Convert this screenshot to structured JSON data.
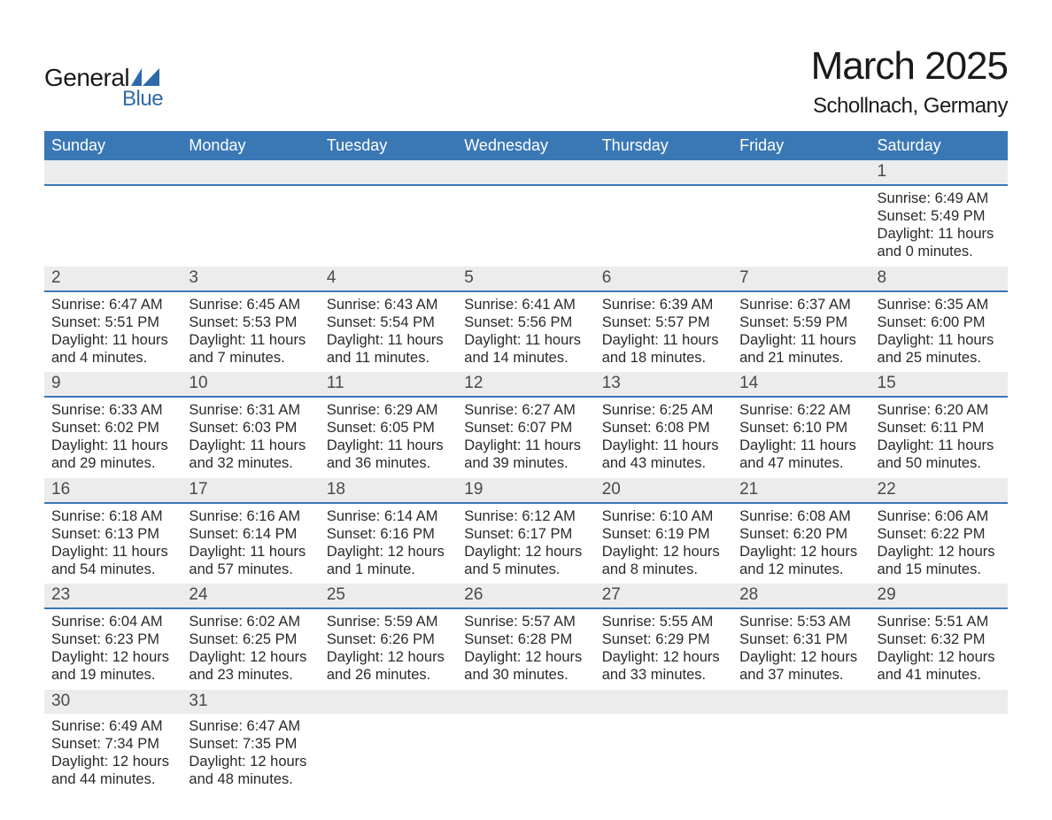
{
  "logo": {
    "main": "General",
    "sub": "Blue",
    "accent_color": "#2f6aa8",
    "text_color": "#1a1a1a"
  },
  "title": "March 2025",
  "subtitle": "Schollnach, Germany",
  "colors": {
    "header_bg": "#3a78b5",
    "header_text": "#ffffff",
    "daynum_bg": "#ececec",
    "daynum_border": "#3a78b5",
    "body_text": "#2a2a2a",
    "page_bg": "#ffffff"
  },
  "weekdays": [
    "Sunday",
    "Monday",
    "Tuesday",
    "Wednesday",
    "Thursday",
    "Friday",
    "Saturday"
  ],
  "weeks": [
    {
      "days": [
        {
          "num": "",
          "sunrise": "",
          "sunset": "",
          "daylight": ""
        },
        {
          "num": "",
          "sunrise": "",
          "sunset": "",
          "daylight": ""
        },
        {
          "num": "",
          "sunrise": "",
          "sunset": "",
          "daylight": ""
        },
        {
          "num": "",
          "sunrise": "",
          "sunset": "",
          "daylight": ""
        },
        {
          "num": "",
          "sunrise": "",
          "sunset": "",
          "daylight": ""
        },
        {
          "num": "",
          "sunrise": "",
          "sunset": "",
          "daylight": ""
        },
        {
          "num": "1",
          "sunrise": "Sunrise: 6:49 AM",
          "sunset": "Sunset: 5:49 PM",
          "daylight": "Daylight: 11 hours and 0 minutes."
        }
      ]
    },
    {
      "days": [
        {
          "num": "2",
          "sunrise": "Sunrise: 6:47 AM",
          "sunset": "Sunset: 5:51 PM",
          "daylight": "Daylight: 11 hours and 4 minutes."
        },
        {
          "num": "3",
          "sunrise": "Sunrise: 6:45 AM",
          "sunset": "Sunset: 5:53 PM",
          "daylight": "Daylight: 11 hours and 7 minutes."
        },
        {
          "num": "4",
          "sunrise": "Sunrise: 6:43 AM",
          "sunset": "Sunset: 5:54 PM",
          "daylight": "Daylight: 11 hours and 11 minutes."
        },
        {
          "num": "5",
          "sunrise": "Sunrise: 6:41 AM",
          "sunset": "Sunset: 5:56 PM",
          "daylight": "Daylight: 11 hours and 14 minutes."
        },
        {
          "num": "6",
          "sunrise": "Sunrise: 6:39 AM",
          "sunset": "Sunset: 5:57 PM",
          "daylight": "Daylight: 11 hours and 18 minutes."
        },
        {
          "num": "7",
          "sunrise": "Sunrise: 6:37 AM",
          "sunset": "Sunset: 5:59 PM",
          "daylight": "Daylight: 11 hours and 21 minutes."
        },
        {
          "num": "8",
          "sunrise": "Sunrise: 6:35 AM",
          "sunset": "Sunset: 6:00 PM",
          "daylight": "Daylight: 11 hours and 25 minutes."
        }
      ]
    },
    {
      "days": [
        {
          "num": "9",
          "sunrise": "Sunrise: 6:33 AM",
          "sunset": "Sunset: 6:02 PM",
          "daylight": "Daylight: 11 hours and 29 minutes."
        },
        {
          "num": "10",
          "sunrise": "Sunrise: 6:31 AM",
          "sunset": "Sunset: 6:03 PM",
          "daylight": "Daylight: 11 hours and 32 minutes."
        },
        {
          "num": "11",
          "sunrise": "Sunrise: 6:29 AM",
          "sunset": "Sunset: 6:05 PM",
          "daylight": "Daylight: 11 hours and 36 minutes."
        },
        {
          "num": "12",
          "sunrise": "Sunrise: 6:27 AM",
          "sunset": "Sunset: 6:07 PM",
          "daylight": "Daylight: 11 hours and 39 minutes."
        },
        {
          "num": "13",
          "sunrise": "Sunrise: 6:25 AM",
          "sunset": "Sunset: 6:08 PM",
          "daylight": "Daylight: 11 hours and 43 minutes."
        },
        {
          "num": "14",
          "sunrise": "Sunrise: 6:22 AM",
          "sunset": "Sunset: 6:10 PM",
          "daylight": "Daylight: 11 hours and 47 minutes."
        },
        {
          "num": "15",
          "sunrise": "Sunrise: 6:20 AM",
          "sunset": "Sunset: 6:11 PM",
          "daylight": "Daylight: 11 hours and 50 minutes."
        }
      ]
    },
    {
      "days": [
        {
          "num": "16",
          "sunrise": "Sunrise: 6:18 AM",
          "sunset": "Sunset: 6:13 PM",
          "daylight": "Daylight: 11 hours and 54 minutes."
        },
        {
          "num": "17",
          "sunrise": "Sunrise: 6:16 AM",
          "sunset": "Sunset: 6:14 PM",
          "daylight": "Daylight: 11 hours and 57 minutes."
        },
        {
          "num": "18",
          "sunrise": "Sunrise: 6:14 AM",
          "sunset": "Sunset: 6:16 PM",
          "daylight": "Daylight: 12 hours and 1 minute."
        },
        {
          "num": "19",
          "sunrise": "Sunrise: 6:12 AM",
          "sunset": "Sunset: 6:17 PM",
          "daylight": "Daylight: 12 hours and 5 minutes."
        },
        {
          "num": "20",
          "sunrise": "Sunrise: 6:10 AM",
          "sunset": "Sunset: 6:19 PM",
          "daylight": "Daylight: 12 hours and 8 minutes."
        },
        {
          "num": "21",
          "sunrise": "Sunrise: 6:08 AM",
          "sunset": "Sunset: 6:20 PM",
          "daylight": "Daylight: 12 hours and 12 minutes."
        },
        {
          "num": "22",
          "sunrise": "Sunrise: 6:06 AM",
          "sunset": "Sunset: 6:22 PM",
          "daylight": "Daylight: 12 hours and 15 minutes."
        }
      ]
    },
    {
      "days": [
        {
          "num": "23",
          "sunrise": "Sunrise: 6:04 AM",
          "sunset": "Sunset: 6:23 PM",
          "daylight": "Daylight: 12 hours and 19 minutes."
        },
        {
          "num": "24",
          "sunrise": "Sunrise: 6:02 AM",
          "sunset": "Sunset: 6:25 PM",
          "daylight": "Daylight: 12 hours and 23 minutes."
        },
        {
          "num": "25",
          "sunrise": "Sunrise: 5:59 AM",
          "sunset": "Sunset: 6:26 PM",
          "daylight": "Daylight: 12 hours and 26 minutes."
        },
        {
          "num": "26",
          "sunrise": "Sunrise: 5:57 AM",
          "sunset": "Sunset: 6:28 PM",
          "daylight": "Daylight: 12 hours and 30 minutes."
        },
        {
          "num": "27",
          "sunrise": "Sunrise: 5:55 AM",
          "sunset": "Sunset: 6:29 PM",
          "daylight": "Daylight: 12 hours and 33 minutes."
        },
        {
          "num": "28",
          "sunrise": "Sunrise: 5:53 AM",
          "sunset": "Sunset: 6:31 PM",
          "daylight": "Daylight: 12 hours and 37 minutes."
        },
        {
          "num": "29",
          "sunrise": "Sunrise: 5:51 AM",
          "sunset": "Sunset: 6:32 PM",
          "daylight": "Daylight: 12 hours and 41 minutes."
        }
      ]
    },
    {
      "days": [
        {
          "num": "30",
          "sunrise": "Sunrise: 6:49 AM",
          "sunset": "Sunset: 7:34 PM",
          "daylight": "Daylight: 12 hours and 44 minutes."
        },
        {
          "num": "31",
          "sunrise": "Sunrise: 6:47 AM",
          "sunset": "Sunset: 7:35 PM",
          "daylight": "Daylight: 12 hours and 48 minutes."
        },
        {
          "num": "",
          "sunrise": "",
          "sunset": "",
          "daylight": ""
        },
        {
          "num": "",
          "sunrise": "",
          "sunset": "",
          "daylight": ""
        },
        {
          "num": "",
          "sunrise": "",
          "sunset": "",
          "daylight": ""
        },
        {
          "num": "",
          "sunrise": "",
          "sunset": "",
          "daylight": ""
        },
        {
          "num": "",
          "sunrise": "",
          "sunset": "",
          "daylight": ""
        }
      ]
    }
  ]
}
